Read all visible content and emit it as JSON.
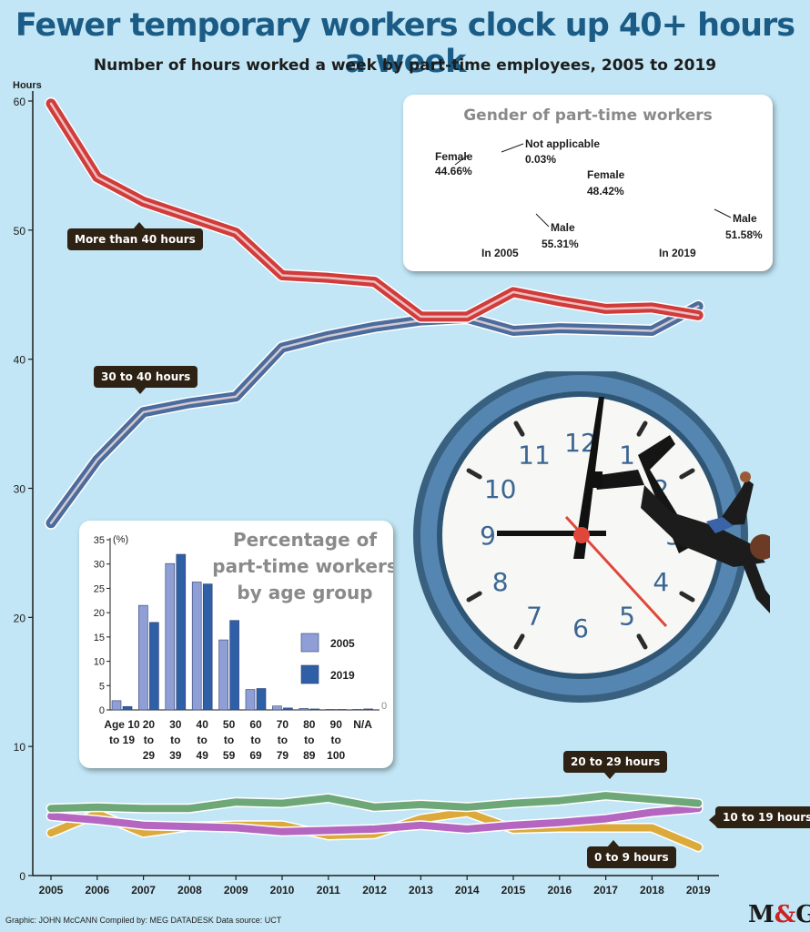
{
  "title": "Fewer temporary workers clock up 40+ hours a week",
  "subtitle": "Number of hours worked a week by part-time employees, 2005 to 2019",
  "credit": "Graphic: JOHN McCANN  Compiled by: MEG DATADESK  Data source: UCT",
  "logo": {
    "left": "M",
    "amp": "&",
    "right": "G"
  },
  "clock_numbers": [
    "12",
    "1",
    "2",
    "3",
    "4",
    "5",
    "6",
    "7",
    "8",
    "9",
    "10",
    "11"
  ],
  "colors": {
    "background": "#c2e6f5",
    "more_than_40": "#d03c3c",
    "h30_40": "#4b6c9c",
    "h20_29": "#6fa878",
    "h10_19": "#b466c0",
    "h0_9": "#dcaa3a",
    "female": "#fbb944",
    "male": "#c394cc",
    "bar_2005": "#8f9fd6",
    "bar_2019": "#2f5fa6"
  },
  "chart_data": [
    {
      "type": "line",
      "title": "Fewer temporary workers clock up 40+ hours a week",
      "subtitle": "Number of hours worked a week by part-time employees, 2005 to 2019",
      "ylabel": "Hours",
      "ylim": [
        0,
        60
      ],
      "yticks": [
        0,
        10,
        20,
        30,
        40,
        50,
        60
      ],
      "x": [
        "2005",
        "2006",
        "2007",
        "2008",
        "2009",
        "2010",
        "2011",
        "2012",
        "2013",
        "2014",
        "2015",
        "2016",
        "2017",
        "2018",
        "2019"
      ],
      "grid": false,
      "series": [
        {
          "name": "More than 40 hours",
          "color_key": "more_than_40",
          "values": [
            59.8,
            54.1,
            52.2,
            51.0,
            49.8,
            46.5,
            46.3,
            46.0,
            43.3,
            43.3,
            45.2,
            44.5,
            43.9,
            44.0,
            43.4
          ]
        },
        {
          "name": "30 to 40 hours",
          "color_key": "h30_40",
          "values": [
            27.3,
            32.2,
            35.9,
            36.6,
            37.1,
            40.9,
            41.8,
            42.5,
            43.0,
            43.2,
            42.2,
            42.4,
            42.3,
            42.2,
            44.1
          ]
        },
        {
          "name": "20 to 29 hours",
          "color_key": "h20_29",
          "values": [
            5.2,
            5.3,
            5.2,
            5.2,
            5.7,
            5.6,
            6.0,
            5.3,
            5.5,
            5.3,
            5.6,
            5.8,
            6.2,
            5.9,
            5.6
          ]
        },
        {
          "name": "10 to 19 hours",
          "color_key": "h10_19",
          "values": [
            4.6,
            4.3,
            3.9,
            3.8,
            3.7,
            3.4,
            3.5,
            3.6,
            3.9,
            3.6,
            3.9,
            4.1,
            4.4,
            4.9,
            5.2
          ]
        },
        {
          "name": "0 to 9 hours",
          "color_key": "h0_9",
          "values": [
            3.3,
            4.8,
            3.3,
            3.8,
            3.9,
            3.9,
            3.1,
            3.2,
            4.4,
            4.9,
            3.6,
            3.7,
            3.7,
            3.7,
            2.2
          ]
        }
      ]
    },
    {
      "type": "bar",
      "title": "Percentage of part-time workers by age group",
      "ylabel": "(%)",
      "ylim": [
        0,
        35
      ],
      "yticks": [
        0,
        5,
        10,
        15,
        20,
        25,
        30,
        35
      ],
      "categories": [
        "Age 10 to 19",
        "20 to 29",
        "30 to 39",
        "40 to 49",
        "50 to 59",
        "60 to 69",
        "70 to 79",
        "80 to 89",
        "90 to 100",
        "N/A"
      ],
      "zero_label": "0",
      "series": [
        {
          "name": "2005",
          "color_key": "bar_2005",
          "values": [
            1.9,
            21.5,
            30.1,
            26.3,
            14.4,
            4.2,
            0.8,
            0.3,
            0.1,
            0.1
          ]
        },
        {
          "name": "2019",
          "color_key": "bar_2019",
          "values": [
            0.7,
            18.0,
            32.0,
            25.9,
            18.4,
            4.4,
            0.4,
            0.2,
            0.1,
            0.2
          ]
        }
      ]
    },
    {
      "type": "pie",
      "title": "Gender of part-time workers",
      "label": "In 2005",
      "slices": [
        {
          "name": "Male",
          "value": 55.31,
          "label": "55.31%",
          "color_key": "male"
        },
        {
          "name": "Female",
          "value": 44.66,
          "label": "44.66%",
          "color_key": "female"
        },
        {
          "name": "Not applicable",
          "value": 0.03,
          "label": "0.03%",
          "color_key": "male"
        }
      ]
    },
    {
      "type": "pie",
      "title": "Gender of part-time workers",
      "label": "In 2019",
      "slices": [
        {
          "name": "Male",
          "value": 51.58,
          "label": "51.58%",
          "color_key": "male"
        },
        {
          "name": "Female",
          "value": 48.42,
          "label": "48.42%",
          "color_key": "female"
        }
      ]
    }
  ]
}
